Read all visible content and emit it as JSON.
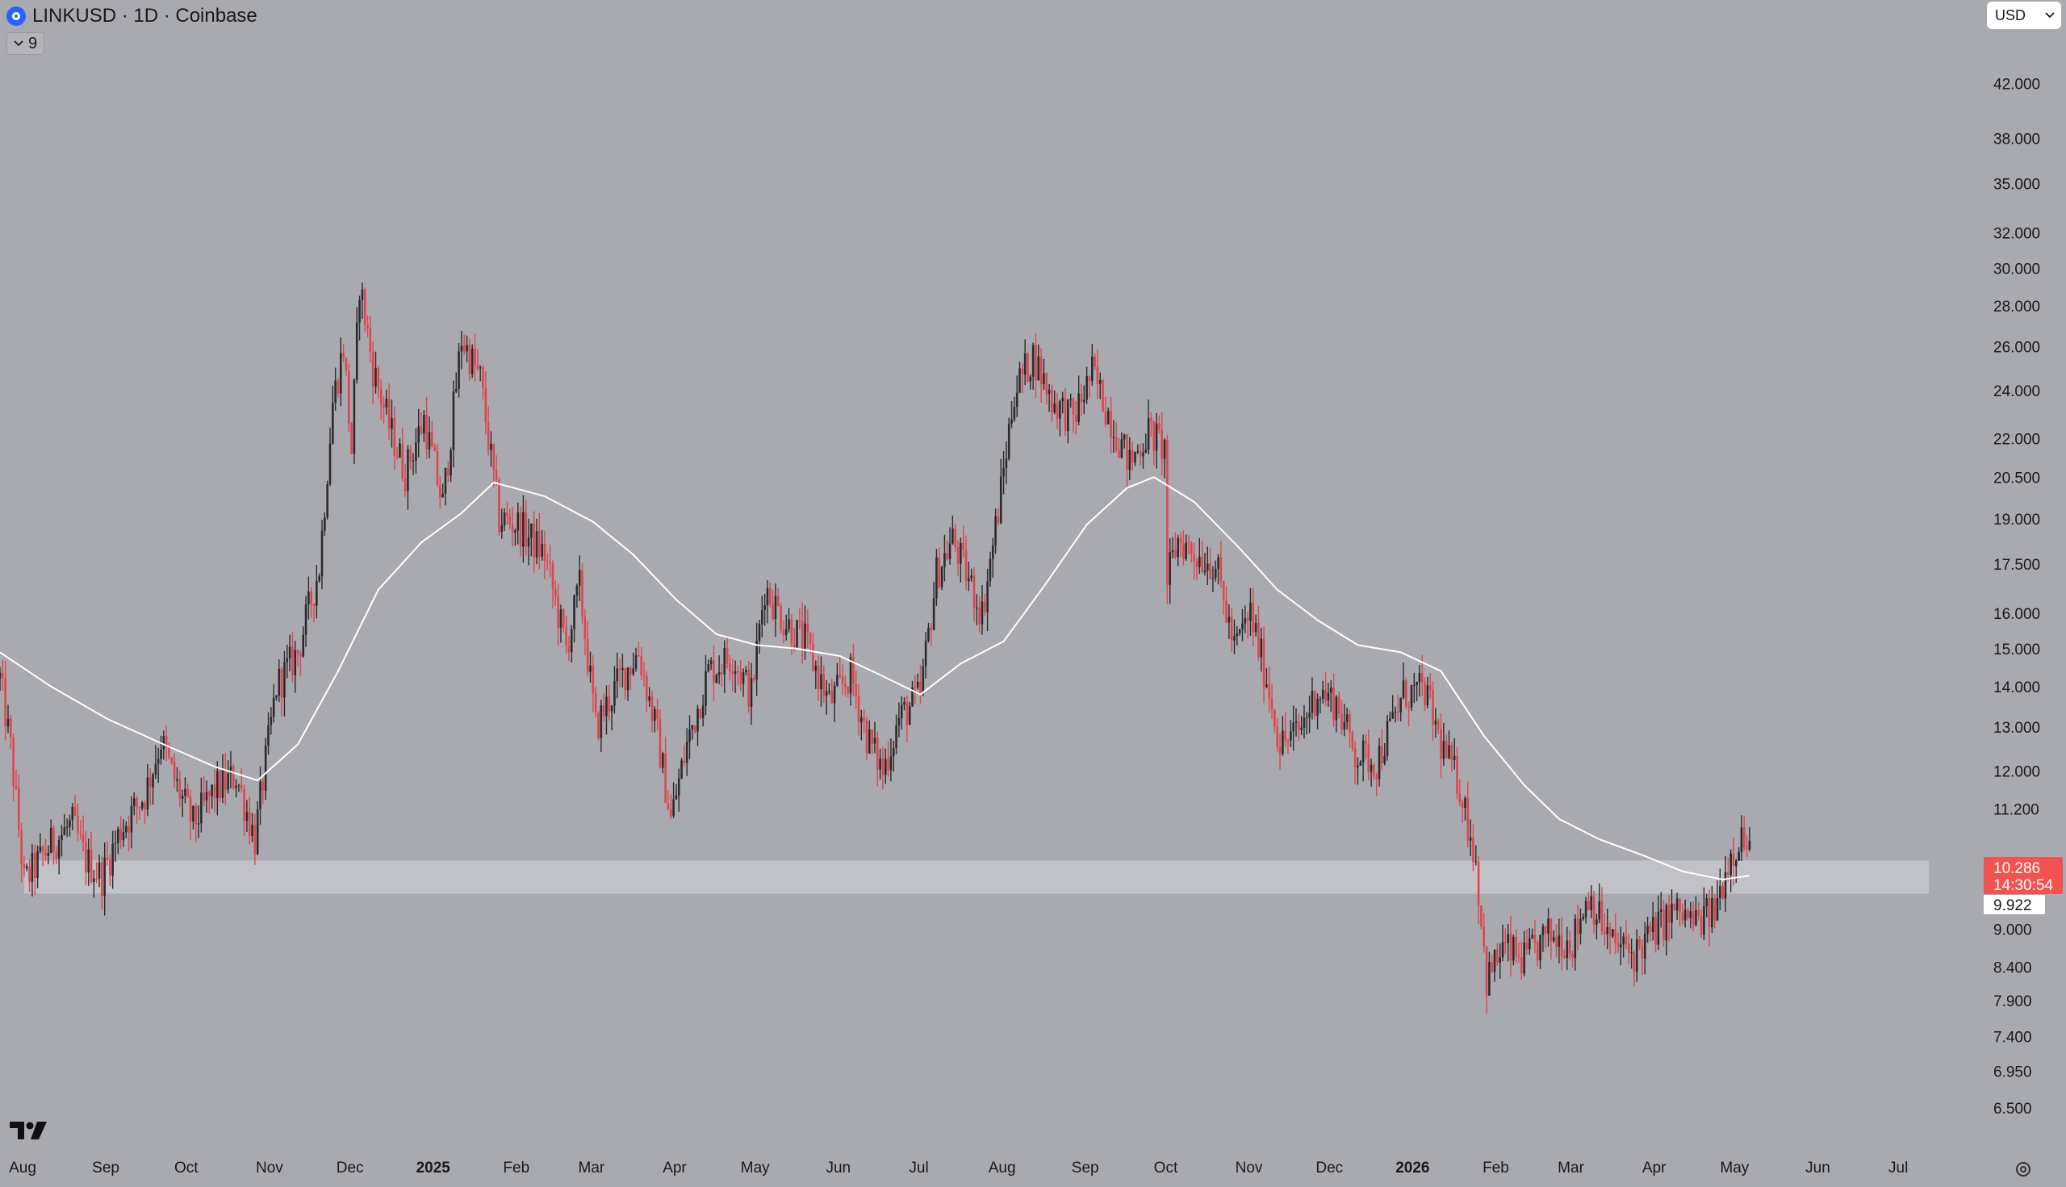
{
  "header": {
    "title": "LINKUSD · 1D · Coinbase",
    "indicator_count": "9"
  },
  "currency": {
    "value": "USD"
  },
  "price_labels": {
    "last_price": "10.286",
    "countdown": "14:30:54",
    "ma_value": "9.922"
  },
  "icons": {
    "symbol": "chainlink-logo-icon",
    "chevron": "chevron-down-icon",
    "logo": "tradingview-logo-icon",
    "settings": "gear-icon"
  },
  "colors": {
    "background": "#a9a9b0",
    "up_candle": "#2b2b2b",
    "down_candle": "#e0454a",
    "moving_average": "#ffffff",
    "zone": "#c6c6cc",
    "last_price_label": "#f05350"
  },
  "chart_data": {
    "type": "candlestick",
    "title": "LINKUSD · 1D · Coinbase",
    "y_scale": "log",
    "ylim": [
      6.2,
      44.5
    ],
    "y_ticks": [
      "42.000",
      "38.000",
      "35.000",
      "32.000",
      "30.000",
      "28.000",
      "26.000",
      "24.000",
      "22.000",
      "20.500",
      "19.000",
      "17.500",
      "16.000",
      "15.000",
      "14.000",
      "13.000",
      "12.000",
      "11.200",
      "9.000",
      "8.400",
      "7.900",
      "7.400",
      "6.950",
      "6.500"
    ],
    "x_ticks": [
      "Aug",
      "Sep",
      "Oct",
      "Nov",
      "Dec",
      "2025",
      "Feb",
      "Mar",
      "Apr",
      "May",
      "Jun",
      "Jul",
      "Aug",
      "Sep",
      "Oct",
      "Nov",
      "Dec",
      "2026",
      "Feb",
      "Mar",
      "Apr",
      "May",
      "Jun",
      "Jul"
    ],
    "xlim": [
      "2024-08-01",
      "2026-07-25"
    ],
    "grid": false,
    "support_zone": {
      "low": 9.6,
      "high": 10.2
    },
    "price_path": [
      [
        "2024-08-01",
        14.2
      ],
      [
        "2024-08-05",
        12.5
      ],
      [
        "2024-08-10",
        9.8
      ],
      [
        "2024-08-20",
        10.5
      ],
      [
        "2024-08-28",
        10.9
      ],
      [
        "2024-09-02",
        10.2
      ],
      [
        "2024-09-08",
        9.9
      ],
      [
        "2024-09-15",
        10.8
      ],
      [
        "2024-09-24",
        11.5
      ],
      [
        "2024-09-30",
        12.7
      ],
      [
        "2024-10-05",
        11.8
      ],
      [
        "2024-10-12",
        10.9
      ],
      [
        "2024-10-20",
        11.6
      ],
      [
        "2024-10-28",
        11.9
      ],
      [
        "2024-11-04",
        10.6
      ],
      [
        "2024-11-07",
        11.8
      ],
      [
        "2024-11-12",
        14.0
      ],
      [
        "2024-11-20",
        14.9
      ],
      [
        "2024-11-28",
        17.4
      ],
      [
        "2024-12-03",
        23.5
      ],
      [
        "2024-12-07",
        26.0
      ],
      [
        "2024-12-10",
        21.5
      ],
      [
        "2024-12-13",
        29.2
      ],
      [
        "2024-12-18",
        25.0
      ],
      [
        "2024-12-24",
        22.5
      ],
      [
        "2024-12-30",
        20.7
      ],
      [
        "2025-01-06",
        22.8
      ],
      [
        "2025-01-13",
        19.5
      ],
      [
        "2025-01-20",
        26.4
      ],
      [
        "2025-01-27",
        24.5
      ],
      [
        "2025-02-03",
        19.0
      ],
      [
        "2025-02-10",
        18.8
      ],
      [
        "2025-02-20",
        17.8
      ],
      [
        "2025-02-28",
        15.0
      ],
      [
        "2025-03-05",
        16.8
      ],
      [
        "2025-03-11",
        13.0
      ],
      [
        "2025-03-20",
        14.2
      ],
      [
        "2025-03-27",
        14.9
      ],
      [
        "2025-04-03",
        12.8
      ],
      [
        "2025-04-08",
        11.0
      ],
      [
        "2025-04-14",
        12.6
      ],
      [
        "2025-04-22",
        14.4
      ],
      [
        "2025-05-01",
        14.8
      ],
      [
        "2025-05-08",
        13.8
      ],
      [
        "2025-05-13",
        16.8
      ],
      [
        "2025-05-20",
        15.8
      ],
      [
        "2025-05-28",
        15.2
      ],
      [
        "2025-06-06",
        13.6
      ],
      [
        "2025-06-14",
        14.3
      ],
      [
        "2025-06-20",
        12.8
      ],
      [
        "2025-06-26",
        12.0
      ],
      [
        "2025-07-02",
        13.2
      ],
      [
        "2025-07-10",
        13.8
      ],
      [
        "2025-07-16",
        17.2
      ],
      [
        "2025-07-22",
        18.3
      ],
      [
        "2025-08-02",
        16.0
      ],
      [
        "2025-08-08",
        19.3
      ],
      [
        "2025-08-14",
        24.0
      ],
      [
        "2025-08-21",
        25.6
      ],
      [
        "2025-08-28",
        23.6
      ],
      [
        "2025-09-05",
        22.8
      ],
      [
        "2025-09-12",
        24.8
      ],
      [
        "2025-09-20",
        22.5
      ],
      [
        "2025-09-26",
        21.0
      ],
      [
        "2025-10-03",
        22.3
      ],
      [
        "2025-10-09",
        21.6
      ],
      [
        "2025-10-10",
        17.0
      ],
      [
        "2025-10-14",
        18.3
      ],
      [
        "2025-10-21",
        17.8
      ],
      [
        "2025-10-28",
        17.5
      ],
      [
        "2025-11-04",
        15.0
      ],
      [
        "2025-11-10",
        16.0
      ],
      [
        "2025-11-17",
        13.9
      ],
      [
        "2025-11-21",
        12.6
      ],
      [
        "2025-11-28",
        12.9
      ],
      [
        "2025-12-05",
        13.9
      ],
      [
        "2025-12-12",
        13.6
      ],
      [
        "2025-12-19",
        12.4
      ],
      [
        "2025-12-27",
        12.2
      ],
      [
        "2026-01-06",
        13.8
      ],
      [
        "2026-01-14",
        13.9
      ],
      [
        "2026-01-20",
        12.6
      ],
      [
        "2026-01-27",
        11.7
      ],
      [
        "2026-02-02",
        10.2
      ],
      [
        "2026-02-06",
        8.2
      ],
      [
        "2026-02-12",
        8.7
      ],
      [
        "2026-02-20",
        8.5
      ],
      [
        "2026-03-01",
        8.9
      ],
      [
        "2026-03-10",
        8.8
      ],
      [
        "2026-03-16",
        9.6
      ],
      [
        "2026-03-24",
        8.8
      ],
      [
        "2026-04-02",
        8.6
      ],
      [
        "2026-04-10",
        9.0
      ],
      [
        "2026-04-17",
        9.3
      ],
      [
        "2026-04-25",
        9.1
      ],
      [
        "2026-05-02",
        9.3
      ],
      [
        "2026-05-07",
        10.2
      ],
      [
        "2026-05-12",
        10.7
      ],
      [
        "2026-05-15",
        10.29
      ]
    ],
    "series": [
      {
        "type": "moving_average",
        "x": [
          "2024-08-01",
          "2024-08-20",
          "2024-09-10",
          "2024-10-01",
          "2024-10-20",
          "2024-11-05",
          "2024-11-20",
          "2024-12-05",
          "2024-12-20",
          "2025-01-05",
          "2025-01-20",
          "2025-02-01",
          "2025-02-20",
          "2025-03-10",
          "2025-03-25",
          "2025-04-10",
          "2025-04-25",
          "2025-05-10",
          "2025-05-25",
          "2025-06-10",
          "2025-06-25",
          "2025-07-10",
          "2025-07-25",
          "2025-08-10",
          "2025-08-25",
          "2025-09-10",
          "2025-09-25",
          "2025-10-05",
          "2025-10-20",
          "2025-11-05",
          "2025-11-20",
          "2025-12-05",
          "2025-12-20",
          "2026-01-05",
          "2026-01-20",
          "2026-02-05",
          "2026-02-20",
          "2026-03-05",
          "2026-03-20",
          "2026-04-05",
          "2026-04-20",
          "2026-05-05",
          "2026-05-15"
        ],
        "values": [
          14.9,
          14.0,
          13.2,
          12.6,
          12.1,
          11.8,
          12.6,
          14.4,
          16.7,
          18.2,
          19.2,
          20.3,
          19.8,
          18.9,
          17.8,
          16.4,
          15.4,
          15.1,
          15.0,
          14.8,
          14.3,
          13.8,
          14.6,
          15.2,
          16.8,
          18.8,
          20.1,
          20.5,
          19.6,
          18.1,
          16.7,
          15.8,
          15.1,
          14.9,
          14.4,
          12.8,
          11.7,
          11.0,
          10.6,
          10.3,
          10.0,
          9.85,
          9.922
        ]
      }
    ]
  }
}
